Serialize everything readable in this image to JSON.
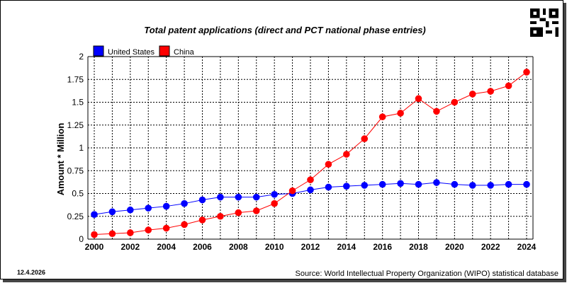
{
  "chart_data": {
    "type": "line",
    "title": "Total patent applications (direct and PCT national phase entries)",
    "ylabel": "Amount * Million",
    "xlabel": "",
    "x": [
      2000,
      2001,
      2002,
      2003,
      2004,
      2005,
      2006,
      2007,
      2008,
      2009,
      2010,
      2011,
      2012,
      2013,
      2014,
      2015,
      2016,
      2017,
      2018,
      2019,
      2020,
      2021,
      2022,
      2023,
      2024
    ],
    "xticks": [
      "2000",
      "2002",
      "2004",
      "2006",
      "2008",
      "2010",
      "2012",
      "2014",
      "2016",
      "2018",
      "2020",
      "2022",
      "2024"
    ],
    "yticks": [
      "0",
      "0.25",
      "0.5",
      "0.75",
      "1",
      "1.25",
      "1.5",
      "1.75",
      "2"
    ],
    "ylim": [
      0,
      2
    ],
    "grid": true,
    "legend_position": "top-left",
    "series": [
      {
        "name": "United States",
        "color": "#0000ff",
        "values": [
          0.27,
          0.3,
          0.32,
          0.34,
          0.36,
          0.39,
          0.43,
          0.46,
          0.46,
          0.46,
          0.49,
          0.5,
          0.54,
          0.57,
          0.58,
          0.59,
          0.6,
          0.61,
          0.6,
          0.62,
          0.6,
          0.59,
          0.59,
          0.6,
          0.6
        ]
      },
      {
        "name": "China",
        "color": "#ff0000",
        "values": [
          0.05,
          0.06,
          0.07,
          0.1,
          0.12,
          0.16,
          0.21,
          0.25,
          0.29,
          0.31,
          0.39,
          0.53,
          0.65,
          0.82,
          0.93,
          1.1,
          1.34,
          1.38,
          1.54,
          1.4,
          1.5,
          1.59,
          1.62,
          1.68,
          1.83
        ]
      }
    ]
  },
  "footer": {
    "date": "12.4.2026",
    "source": "Source: World Intellectual Property Organization (WIPO) statistical database"
  }
}
